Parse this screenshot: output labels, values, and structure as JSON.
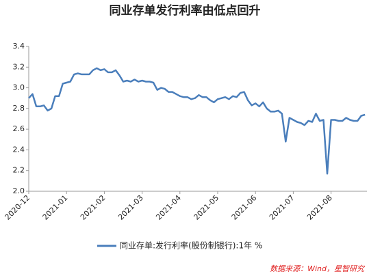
{
  "chart_data": {
    "type": "line",
    "title": "同业存单发行利率由低点回升",
    "categories": [
      "2020-12",
      null,
      null,
      null,
      null,
      null,
      null,
      null,
      null,
      null,
      "2021-01",
      null,
      null,
      null,
      null,
      null,
      null,
      null,
      null,
      null,
      "2021-02",
      null,
      null,
      null,
      null,
      null,
      null,
      null,
      null,
      null,
      "2021-03",
      null,
      null,
      null,
      null,
      null,
      null,
      null,
      null,
      null,
      "2021-04",
      null,
      null,
      null,
      null,
      null,
      null,
      null,
      null,
      null,
      "2021-05",
      null,
      null,
      null,
      null,
      null,
      null,
      null,
      null,
      null,
      "2021-06",
      null,
      null,
      null,
      null,
      null,
      null,
      null,
      null,
      null,
      "2021-07",
      null,
      null,
      null,
      null,
      null,
      null,
      null,
      null,
      null,
      "2021-08",
      null,
      null,
      null,
      null,
      null,
      null,
      null,
      null,
      null
    ],
    "series": [
      {
        "name": "同业存单:发行利率(股份制银行):1年 %",
        "color": "#4a7ebb",
        "values": [
          2.9,
          2.94,
          2.82,
          2.82,
          2.83,
          2.78,
          2.8,
          2.92,
          2.92,
          3.04,
          3.05,
          3.06,
          3.13,
          3.14,
          3.13,
          3.13,
          3.13,
          3.17,
          3.19,
          3.17,
          3.18,
          3.15,
          3.15,
          3.17,
          3.12,
          3.06,
          3.07,
          3.06,
          3.08,
          3.06,
          3.07,
          3.06,
          3.06,
          3.05,
          2.98,
          3.0,
          2.99,
          2.96,
          2.96,
          2.94,
          2.92,
          2.91,
          2.91,
          2.89,
          2.9,
          2.93,
          2.91,
          2.91,
          2.88,
          2.86,
          2.89,
          2.9,
          2.91,
          2.89,
          2.92,
          2.91,
          2.95,
          2.96,
          2.88,
          2.83,
          2.85,
          2.82,
          2.86,
          2.8,
          2.77,
          2.77,
          2.78,
          2.75,
          2.48,
          2.71,
          2.69,
          2.67,
          2.66,
          2.64,
          2.68,
          2.67,
          2.75,
          2.68,
          2.69,
          2.17,
          2.69,
          2.69,
          2.68,
          2.68,
          2.71,
          2.69,
          2.68,
          2.68,
          2.73,
          2.74
        ]
      }
    ],
    "ylim": [
      2.0,
      3.4
    ],
    "yticks": [
      {
        "value": 2.0,
        "label": "2.0"
      },
      2.2,
      2.4,
      2.6,
      2.8,
      {
        "value": 3.0,
        "label": "3.0"
      },
      3.2,
      3.4
    ],
    "grid": false,
    "legend": "bottom",
    "source": "数据来源：Wind，星智研究"
  }
}
